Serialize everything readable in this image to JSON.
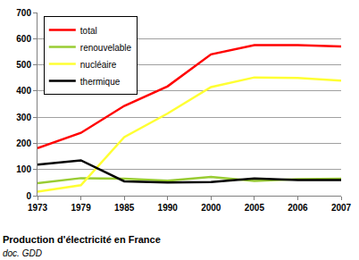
{
  "chart_data": {
    "type": "line",
    "title": "Production d'électricité en France",
    "subtitle": "doc. GDD",
    "categories": [
      "1973",
      "1979",
      "1985",
      "1990",
      "2000",
      "2005",
      "2006",
      "2007"
    ],
    "series": [
      {
        "name": "total",
        "color": "#ff0000",
        "values": [
          182,
          240,
          343,
          418,
          540,
          575,
          575,
          570
        ]
      },
      {
        "name": "renouvelable",
        "color": "#99cc33",
        "values": [
          48,
          67,
          65,
          57,
          72,
          56,
          63,
          65
        ]
      },
      {
        "name": "nucléaire",
        "color": "#ffff33",
        "values": [
          15,
          40,
          224,
          314,
          415,
          452,
          450,
          440
        ]
      },
      {
        "name": "thermique",
        "color": "#000000",
        "values": [
          119,
          135,
          55,
          50,
          52,
          66,
          60,
          60
        ]
      }
    ],
    "ylim": [
      0,
      700
    ],
    "yticks": [
      0,
      100,
      200,
      300,
      400,
      500,
      600,
      700
    ],
    "grid": true,
    "legend": "top left"
  }
}
